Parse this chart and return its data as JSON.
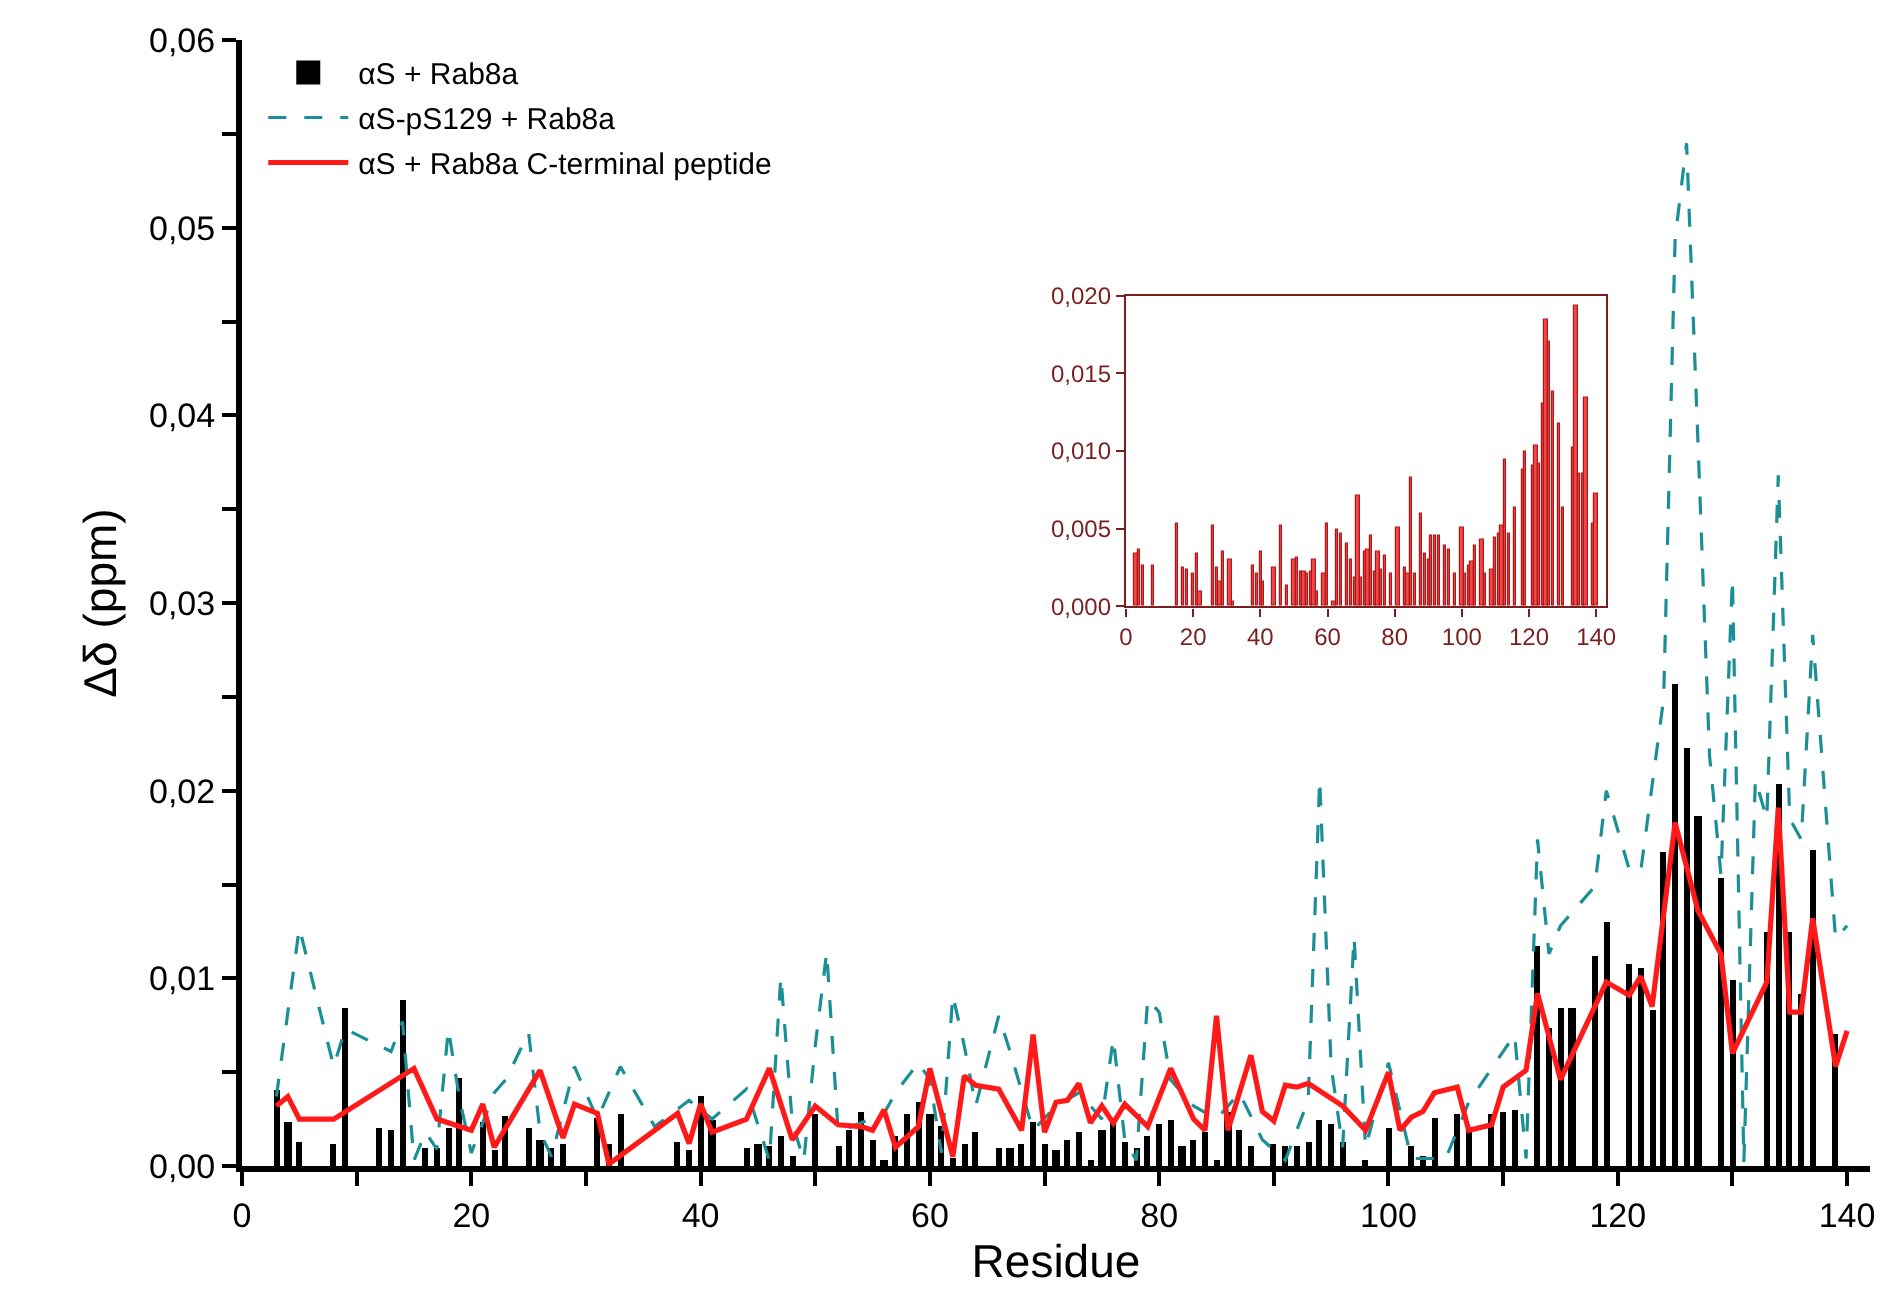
{
  "chart_data": [
    {
      "type": "bar",
      "xlabel": "Residue",
      "ylabel": "Δδ (ppm)",
      "legend": "top left",
      "xlim": [
        0,
        142
      ],
      "ylim": [
        0,
        0.06
      ],
      "xticks": [
        0,
        {
          "value": 10,
          "label": null
        },
        20,
        {
          "value": 30,
          "label": null
        },
        40,
        {
          "value": 50,
          "label": null
        },
        60,
        {
          "value": 70,
          "label": null
        },
        80,
        {
          "value": 90,
          "label": null
        },
        100,
        {
          "value": 110,
          "label": null
        },
        120,
        {
          "value": 130,
          "label": null
        },
        140
      ],
      "yticks": [
        {
          "value": 0,
          "label": "0,00"
        },
        {
          "value": 0.005,
          "label": null
        },
        {
          "value": 0.01,
          "label": "0,01"
        },
        {
          "value": 0.015,
          "label": null
        },
        {
          "value": 0.02,
          "label": "0,02"
        },
        {
          "value": 0.025,
          "label": null
        },
        {
          "value": 0.03,
          "label": "0,03"
        },
        {
          "value": 0.035,
          "label": null
        },
        {
          "value": 0.04,
          "label": "0,04"
        },
        {
          "value": 0.045,
          "label": null
        },
        {
          "value": 0.05,
          "label": "0,05"
        },
        {
          "value": 0.055,
          "label": null
        },
        {
          "value": 0.06,
          "label": "0,06"
        }
      ],
      "series": [
        {
          "name": "αS + Rab8a",
          "type": "bar",
          "color": "#000000",
          "x": [
            3,
            4,
            5,
            8,
            9,
            12,
            13,
            14,
            16,
            17,
            18,
            19,
            21,
            22,
            23,
            25,
            26,
            27,
            28,
            31,
            32,
            33,
            38,
            39,
            40,
            41,
            44,
            45,
            46,
            47,
            48,
            50,
            52,
            53,
            54,
            55,
            56,
            57,
            58,
            59,
            60,
            61,
            62,
            63,
            64,
            66,
            67,
            68,
            69,
            70,
            71,
            72,
            73,
            74,
            75,
            76,
            77,
            78,
            79,
            80,
            81,
            82,
            83,
            84,
            85,
            86,
            87,
            88,
            90,
            91,
            92,
            93,
            94,
            95,
            96,
            98,
            100,
            102,
            103,
            104,
            106,
            107,
            109,
            110,
            111,
            113,
            114,
            115,
            116,
            118,
            119,
            121,
            122,
            123,
            124,
            125,
            126,
            127,
            129,
            130,
            133,
            134,
            135,
            136,
            137,
            139
          ],
          "values": [
            0.004,
            0.0023,
            0.0013,
            0.0012,
            0.0084,
            0.002,
            0.0019,
            0.0088,
            0.001,
            0.001,
            0.002,
            0.0047,
            0.0023,
            0.0009,
            0.0027,
            0.002,
            0.0014,
            0.001,
            0.0012,
            0.0026,
            0.0012,
            0.0028,
            0.0013,
            0.0009,
            0.0037,
            0.0025,
            0.001,
            0.0012,
            0.0011,
            0.0016,
            0.0005,
            0.0028,
            0.0011,
            0.0019,
            0.0029,
            0.0014,
            0.0003,
            0.0016,
            0.0028,
            0.0034,
            0.0028,
            0.0021,
            0.0004,
            0.0012,
            0.0018,
            0.001,
            0.001,
            0.0012,
            0.0023,
            0.0012,
            0.0009,
            0.0014,
            0.0018,
            0.0003,
            0.0019,
            0.0023,
            0.0013,
            0.001,
            0.0016,
            0.0022,
            0.0024,
            0.0011,
            0.0014,
            0.0018,
            0.0003,
            0.0029,
            0.0019,
            0.0011,
            0.0012,
            0.0011,
            0.0011,
            0.0013,
            0.0024,
            0.0022,
            0.0013,
            0.0003,
            0.002,
            0.0011,
            0.0005,
            0.0026,
            0.0028,
            0.0019,
            0.0028,
            0.0029,
            0.003,
            0.0117,
            0.0074,
            0.0084,
            0.0084,
            0.0112,
            0.013,
            0.0108,
            0.0105,
            0.0083,
            0.0167,
            0.0257,
            0.0223,
            0.0186,
            0.0153,
            0.0099,
            0.0125,
            0.0204,
            0.0125,
            0.0092,
            0.0168,
            0.007
          ]
        },
        {
          "name": "αS-pS129 + Rab8a",
          "type": "line",
          "line_style": "dashed",
          "color": "#1a8f95",
          "x": [
            3,
            5,
            8,
            9,
            13,
            14,
            15,
            16,
            17,
            18,
            19,
            20,
            22,
            23,
            25,
            26,
            27,
            29,
            31,
            33,
            36,
            39,
            41,
            44,
            46,
            47,
            48,
            49,
            50,
            51,
            52,
            54,
            56,
            57,
            59,
            60,
            61,
            62,
            63,
            64,
            66,
            67,
            69,
            71,
            73,
            75,
            76,
            77,
            78,
            79,
            80,
            81,
            83,
            85,
            87,
            89,
            91,
            93,
            94,
            95,
            96,
            97,
            98,
            100,
            102,
            105,
            107,
            111,
            112,
            113,
            114,
            115,
            118,
            119,
            121,
            122,
            124,
            125,
            126,
            127,
            128,
            129,
            130,
            131,
            132,
            133,
            134,
            135,
            136,
            137,
            139,
            140
          ],
          "values": [
            0.0037,
            0.0127,
            0.0053,
            0.0073,
            0.0061,
            0.0077,
            0.0003,
            0.0018,
            0.0009,
            0.0073,
            0.0035,
            0.0007,
            0.0039,
            0.0046,
            0.0071,
            0.0018,
            0.0005,
            0.0053,
            0.0025,
            0.0053,
            0.0021,
            0.0035,
            0.0025,
            0.0041,
            0.0003,
            0.0101,
            0.0023,
            0.0003,
            0.0064,
            0.0114,
            0.0018,
            0.0023,
            0.0028,
            0.0039,
            0.0055,
            0.0046,
            0.0007,
            0.0091,
            0.0064,
            0.0032,
            0.008,
            0.0061,
            0.0019,
            0.0032,
            0.0039,
            0.0025,
            0.0068,
            0.0014,
            0.0003,
            0.0089,
            0.0082,
            0.0046,
            0.0032,
            0.0025,
            0.0039,
            0.0014,
            0.0003,
            0.0035,
            0.0206,
            0.0053,
            0.001,
            0.0122,
            0.001,
            0.0055,
            0.0004,
            0.0004,
            0.0034,
            0.007,
            0.0004,
            0.0174,
            0.0113,
            0.0128,
            0.0149,
            0.02,
            0.0158,
            0.0157,
            0.0249,
            0.0494,
            0.0545,
            0.0385,
            0.0219,
            0.0155,
            0.0313,
            0.0002,
            0.0206,
            0.0185,
            0.0368,
            0.0185,
            0.0174,
            0.0283,
            0.0121,
            0.0128
          ]
        },
        {
          "name": "αS + Rab8a C-terminal peptide",
          "type": "line",
          "line_style": "solid",
          "color": "#ff1a1a",
          "x": [
            3,
            4,
            5,
            8,
            15,
            17,
            20,
            21,
            22,
            26,
            28,
            29,
            31,
            32,
            38,
            39,
            40,
            41,
            44,
            46,
            48,
            50,
            52,
            54,
            55,
            56,
            57,
            59,
            60,
            62,
            63,
            64,
            66,
            68,
            69,
            70,
            71,
            72,
            73,
            74,
            75,
            76,
            77,
            79,
            81,
            83,
            84,
            85,
            86,
            88,
            89,
            90,
            91,
            92,
            93,
            96,
            98,
            100,
            101,
            102,
            103,
            104,
            106,
            107,
            109,
            110,
            112,
            113,
            115,
            119,
            121,
            122,
            123,
            125,
            127,
            129,
            130,
            133,
            134,
            135,
            136,
            137,
            139,
            140
          ],
          "values": [
            0.0032,
            0.0037,
            0.0025,
            0.0025,
            0.0052,
            0.0025,
            0.0019,
            0.0033,
            0.001,
            0.0051,
            0.0015,
            0.0033,
            0.0028,
            0.0001,
            0.0028,
            0.0012,
            0.0033,
            0.0018,
            0.0025,
            0.0052,
            0.0014,
            0.0032,
            0.0022,
            0.0021,
            0.0019,
            0.003,
            0.001,
            0.0021,
            0.0052,
            0.0005,
            0.0048,
            0.0043,
            0.0041,
            0.0019,
            0.007,
            0.0018,
            0.0034,
            0.0035,
            0.0044,
            0.0023,
            0.0032,
            0.0023,
            0.0033,
            0.0021,
            0.0052,
            0.0025,
            0.0019,
            0.008,
            0.0019,
            0.0059,
            0.0029,
            0.0024,
            0.0043,
            0.0042,
            0.0044,
            0.0032,
            0.0019,
            0.005,
            0.0019,
            0.0026,
            0.0029,
            0.0039,
            0.0042,
            0.0019,
            0.0022,
            0.0042,
            0.0051,
            0.0092,
            0.0046,
            0.0098,
            0.0091,
            0.0101,
            0.0085,
            0.0183,
            0.0136,
            0.0113,
            0.006,
            0.0098,
            0.0191,
            0.0082,
            0.0082,
            0.0132,
            0.0053,
            0.0072
          ]
        }
      ]
    },
    {
      "type": "bar",
      "legend": false,
      "xlim": [
        0,
        143
      ],
      "ylim": [
        0,
        0.02
      ],
      "xticks": [
        0,
        20,
        40,
        60,
        80,
        100,
        120,
        140
      ],
      "yticks": [
        {
          "value": 0,
          "label": "0,000"
        },
        {
          "value": 0.005,
          "label": "0,005"
        },
        {
          "value": 0.01,
          "label": "0,010"
        },
        {
          "value": 0.015,
          "label": "0,015"
        },
        {
          "value": 0.02,
          "label": "0,020"
        }
      ],
      "series": [
        {
          "color": "#f04848",
          "x": [
            3,
            4,
            5,
            8,
            15,
            17,
            18,
            20,
            21,
            22,
            26,
            27,
            28,
            29,
            31,
            32,
            38,
            39,
            40,
            41,
            44,
            46,
            48,
            50,
            51,
            52,
            53,
            54,
            55,
            56,
            57,
            59,
            60,
            62,
            63,
            64,
            66,
            67,
            68,
            69,
            70,
            71,
            72,
            73,
            74,
            75,
            76,
            77,
            79,
            81,
            83,
            84,
            85,
            86,
            88,
            89,
            90,
            91,
            92,
            93,
            95,
            96,
            98,
            100,
            101,
            102,
            103,
            104,
            106,
            107,
            109,
            110,
            111,
            112,
            113,
            114,
            116,
            118,
            119,
            121,
            122,
            123,
            124,
            125,
            126,
            127,
            129,
            130,
            133,
            134,
            135,
            136,
            137,
            139,
            140
          ],
          "values": [
            0.0034,
            0.0037,
            0.0026,
            0.0026,
            0.0053,
            0.0025,
            0.0024,
            0.0021,
            0.0034,
            0.001,
            0.0052,
            0.0025,
            0.0016,
            0.0035,
            0.003,
            0.0003,
            0.0026,
            0.0021,
            0.0035,
            0.0016,
            0.0025,
            0.0052,
            0.0013,
            0.003,
            0.0032,
            0.0022,
            0.0022,
            0.0021,
            0.0022,
            0.003,
            0.001,
            0.0021,
            0.0053,
            0.0003,
            0.0049,
            0.0047,
            0.004,
            0.003,
            0.0019,
            0.0071,
            0.0019,
            0.0035,
            0.0036,
            0.0046,
            0.0023,
            0.0035,
            0.0024,
            0.0033,
            0.0021,
            0.0051,
            0.0025,
            0.0021,
            0.0083,
            0.0021,
            0.006,
            0.0034,
            0.003,
            0.0045,
            0.0045,
            0.0045,
            0.0039,
            0.0036,
            0.0021,
            0.0051,
            0.0021,
            0.0026,
            0.0029,
            0.0039,
            0.0043,
            0.0021,
            0.0024,
            0.0044,
            0.0047,
            0.0052,
            0.0094,
            0.0047,
            0.0064,
            0.0088,
            0.0099,
            0.0091,
            0.0103,
            0.0092,
            0.013,
            0.0185,
            0.0171,
            0.0138,
            0.0117,
            0.0063,
            0.0102,
            0.0194,
            0.0086,
            0.0085,
            0.0135,
            0.0053,
            0.0072
          ]
        }
      ]
    }
  ]
}
